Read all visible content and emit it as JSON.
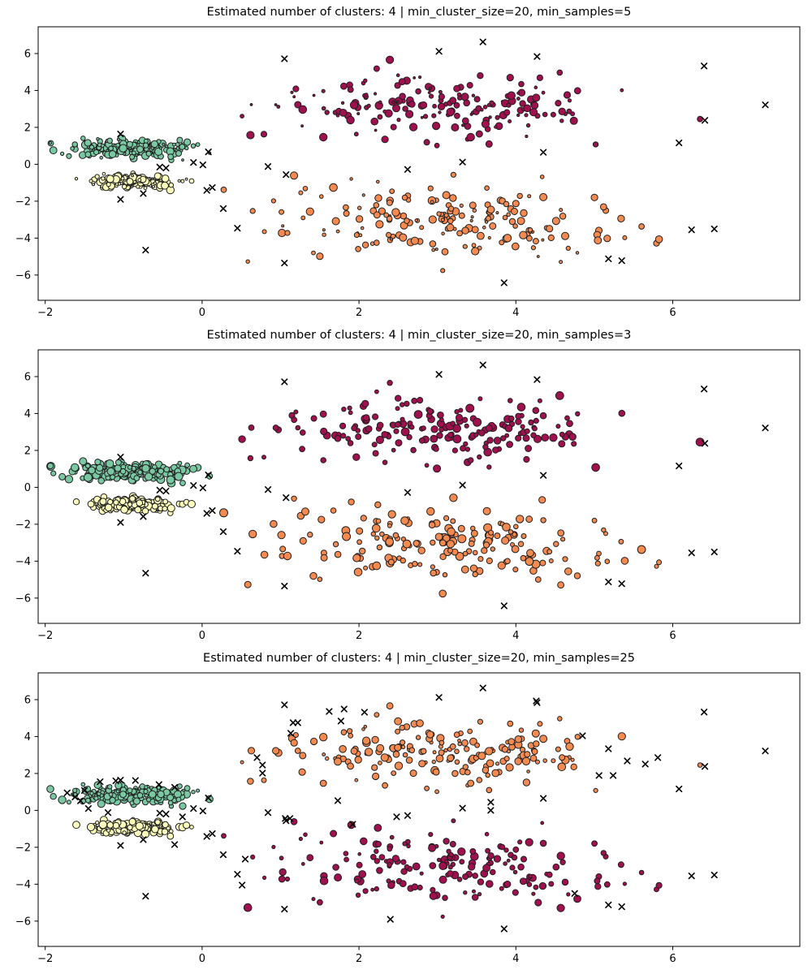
{
  "figure": {
    "background": "#ffffff"
  },
  "chart_data": {
    "type": "scatter",
    "seed": 20,
    "xlim": [
      -2.09,
      7.62
    ],
    "ylim": [
      -7.37,
      7.45
    ],
    "xticks": [
      -2,
      0,
      2,
      4,
      6
    ],
    "yticks": [
      -6,
      -4,
      -2,
      0,
      2,
      4,
      6
    ],
    "grid": false,
    "legend": "none",
    "palette": {
      "green": "#79c8a2",
      "yellow": "#fdfdbe",
      "crimson": "#a0104e",
      "orange": "#f58a50",
      "noise": "#000000",
      "edge": "#1f1f1f",
      "frame": "#000000"
    },
    "clusters": [
      {
        "name": "left-top-green",
        "center": [
          -0.92,
          0.85
        ],
        "std": [
          0.35,
          0.24
        ],
        "count": 210
      },
      {
        "name": "left-bottom-yellow",
        "center": [
          -0.82,
          -0.93
        ],
        "std": [
          0.27,
          0.16
        ],
        "count": 170
      },
      {
        "name": "right-top",
        "center": [
          3.1,
          3.05
        ],
        "std": [
          1.12,
          0.9
        ],
        "count": 185
      },
      {
        "name": "right-bottom",
        "center": [
          3.15,
          -3.0
        ],
        "std": [
          1.12,
          0.95
        ],
        "count": 185
      }
    ],
    "noise_base": [
      [
        1.05,
        5.72
      ],
      [
        3.02,
        6.12
      ],
      [
        3.58,
        6.63
      ],
      [
        4.27,
        5.84
      ],
      [
        6.4,
        5.33
      ],
      [
        7.18,
        3.22
      ],
      [
        6.41,
        2.38
      ],
      [
        6.08,
        1.16
      ],
      [
        4.35,
        0.65
      ],
      [
        3.32,
        0.12
      ],
      [
        2.62,
        -0.28
      ],
      [
        0.84,
        -0.12
      ],
      [
        1.07,
        -0.56
      ],
      [
        0.08,
        0.67
      ],
      [
        -0.11,
        0.1
      ],
      [
        0.01,
        -0.03
      ],
      [
        -0.54,
        -0.15
      ],
      [
        -0.46,
        -0.2
      ],
      [
        0.13,
        -1.26
      ],
      [
        0.06,
        -1.41
      ],
      [
        0.27,
        -2.4
      ],
      [
        0.45,
        -3.46
      ],
      [
        -1.04,
        1.64
      ],
      [
        -1.04,
        -1.9
      ],
      [
        -0.75,
        -1.58
      ],
      [
        -0.72,
        -4.65
      ],
      [
        1.05,
        -5.35
      ],
      [
        3.85,
        -6.42
      ],
      [
        5.18,
        -5.12
      ],
      [
        5.35,
        -5.22
      ],
      [
        6.24,
        -3.55
      ],
      [
        6.53,
        -3.5
      ]
    ],
    "subplots": [
      {
        "title": "Estimated number of clusters: 4 | min_cluster_size=20, min_samples=5",
        "estimated_clusters": 4,
        "min_cluster_size": 20,
        "min_samples": 5,
        "cluster_colors": [
          "green",
          "yellow",
          "crimson",
          "orange"
        ],
        "size_range": [
          1.3,
          4.8
        ],
        "extra_noise": []
      },
      {
        "title": "Estimated number of clusters: 4 | min_cluster_size=20, min_samples=3",
        "estimated_clusters": 4,
        "min_cluster_size": 20,
        "min_samples": 3,
        "cluster_colors": [
          "green",
          "yellow",
          "crimson",
          "orange"
        ],
        "size_range": [
          2.4,
          5.0
        ],
        "extra_noise": []
      },
      {
        "title": "Estimated number of clusters: 4 | min_cluster_size=20, min_samples=25",
        "estimated_clusters": 4,
        "min_cluster_size": 20,
        "min_samples": 25,
        "cluster_colors": [
          "green",
          "yellow",
          "orange",
          "crimson"
        ],
        "size_range": [
          1.8,
          4.8
        ],
        "extra_noise": [
          [
            1.62,
            5.36
          ],
          [
            1.81,
            5.49
          ],
          [
            2.07,
            5.32
          ],
          [
            1.16,
            4.75
          ],
          [
            1.22,
            4.75
          ],
          [
            1.77,
            4.84
          ],
          [
            1.13,
            4.18
          ],
          [
            0.7,
            2.86
          ],
          [
            0.77,
            2.46
          ],
          [
            0.77,
            2.02
          ],
          [
            1.06,
            -0.44
          ],
          [
            1.12,
            -0.44
          ],
          [
            1.73,
            0.53
          ],
          [
            2.48,
            -0.35
          ],
          [
            1.92,
            -0.75
          ],
          [
            4.26,
            5.93
          ],
          [
            4.85,
            4.04
          ],
          [
            5.18,
            3.34
          ],
          [
            5.42,
            2.68
          ],
          [
            5.65,
            2.51
          ],
          [
            5.81,
            2.86
          ],
          [
            5.06,
            1.89
          ],
          [
            5.24,
            1.89
          ],
          [
            3.68,
            0.44
          ],
          [
            3.68,
            0.0
          ],
          [
            -1.72,
            0.95
          ],
          [
            -1.62,
            0.72
          ],
          [
            -1.55,
            0.52
          ],
          [
            -1.5,
            1.08
          ],
          [
            -1.3,
            1.55
          ],
          [
            -1.1,
            1.6
          ],
          [
            -0.85,
            1.62
          ],
          [
            -0.55,
            1.4
          ],
          [
            -0.35,
            1.25
          ],
          [
            -1.45,
            0.1
          ],
          [
            -1.2,
            -0.12
          ],
          [
            -0.25,
            -0.35
          ],
          [
            0.55,
            -2.64
          ],
          [
            0.51,
            -4.05
          ],
          [
            -0.35,
            -1.85
          ],
          [
            2.4,
            -5.9
          ],
          [
            4.75,
            -4.5
          ]
        ]
      }
    ]
  }
}
